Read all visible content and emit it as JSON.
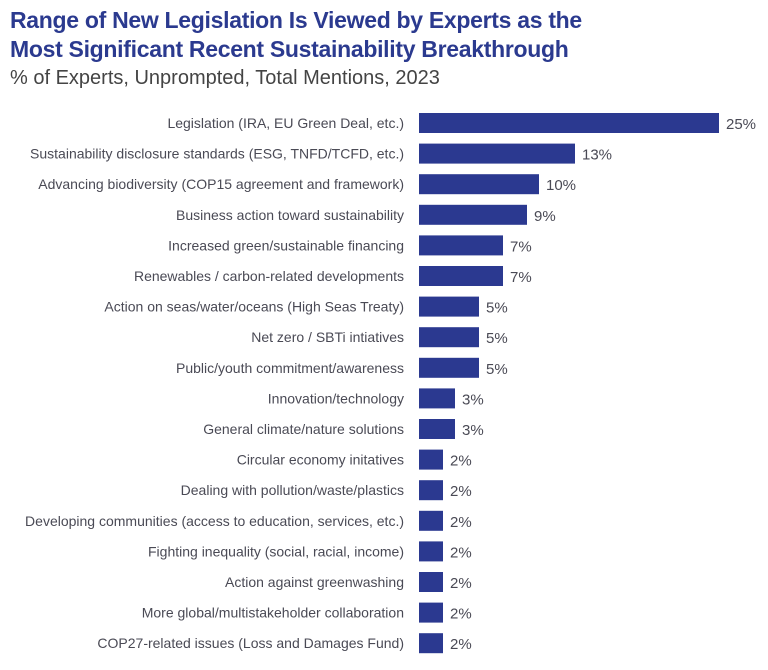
{
  "chart_data": {
    "type": "bar",
    "orientation": "horizontal",
    "title": "Range of New Legislation Is Viewed by Experts as the Most Significant Recent Sustainability Breakthrough",
    "title_lines": [
      "Range of New Legislation Is Viewed by Experts as the",
      "Most Significant Recent Sustainability Breakthrough"
    ],
    "subtitle": "% of Experts, Unprompted, Total Mentions, 2023",
    "xlabel": "",
    "ylabel": "",
    "xlim": [
      0,
      25
    ],
    "grid": false,
    "bar_color": "#2b3990",
    "title_color": "#2b3a8f",
    "categories": [
      "Legislation (IRA, EU Green Deal, etc.)",
      "Sustainability disclosure standards (ESG, TNFD/TCFD, etc.)",
      "Advancing biodiversity (COP15 agreement and framework)",
      "Business action toward sustainability",
      "Increased green/sustainable financing",
      "Renewables / carbon-related developments",
      "Action on seas/water/oceans (High Seas Treaty)",
      "Net zero / SBTi intiatives",
      "Public/youth commitment/awareness",
      "Innovation/technology",
      "General climate/nature solutions",
      "Circular economy initatives",
      "Dealing with pollution/waste/plastics",
      "Developing communities (access to education, services, etc.)",
      "Fighting inequality (social, racial, income)",
      "Action against greenwashing",
      "More global/multistakeholder collaboration",
      "COP27-related issues (Loss and Damages Fund)"
    ],
    "values": [
      25,
      13,
      10,
      9,
      7,
      7,
      5,
      5,
      5,
      3,
      3,
      2,
      2,
      2,
      2,
      2,
      2,
      2
    ],
    "value_labels": [
      "25%",
      "13%",
      "10%",
      "9%",
      "7%",
      "7%",
      "5%",
      "5%",
      "5%",
      "3%",
      "3%",
      "2%",
      "2%",
      "2%",
      "2%",
      "2%",
      "2%",
      "2%"
    ]
  }
}
